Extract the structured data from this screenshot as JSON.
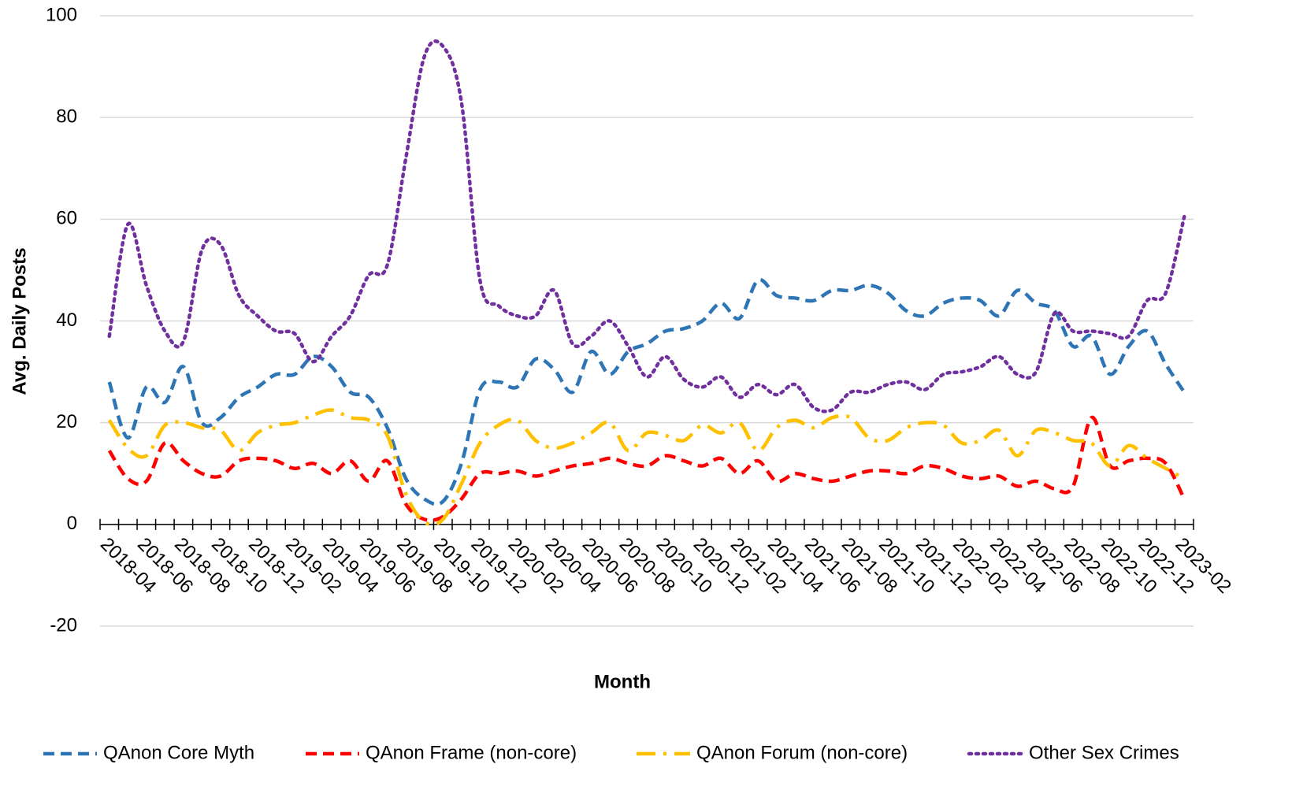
{
  "chart_data": {
    "type": "line",
    "x_label": "Month",
    "y_label": "Avg. Daily Posts",
    "categories": [
      "2018-04",
      null,
      "2018-06",
      null,
      "2018-08",
      null,
      "2018-10",
      null,
      "2018-12",
      null,
      "2019-02",
      null,
      "2019-04",
      null,
      "2019-06",
      null,
      "2019-08",
      null,
      "2019-10",
      null,
      "2019-12",
      null,
      "2020-02",
      null,
      "2020-04",
      null,
      "2020-06",
      null,
      "2020-08",
      null,
      "2020-10",
      null,
      "2020-12",
      null,
      "2021-02",
      null,
      "2021-04",
      null,
      "2021-06",
      null,
      "2021-08",
      null,
      "2021-10",
      null,
      "2021-12",
      null,
      "2022-02",
      null,
      "2022-04",
      null,
      "2022-06",
      null,
      "2022-08",
      null,
      "2022-10",
      null,
      "2022-12",
      null,
      "2023-02"
    ],
    "series": [
      {
        "name": "QAnon Core Myth",
        "color": "#2e75b6",
        "dash": "dashed",
        "values": [
          28,
          17,
          27,
          24,
          31,
          20,
          21,
          25,
          27,
          29.5,
          29.5,
          33,
          31,
          26,
          25,
          19,
          9,
          5,
          4.5,
          12,
          26.5,
          28,
          27,
          32.5,
          30.5,
          26,
          34,
          29.5,
          34,
          35.5,
          38,
          38.5,
          40,
          43.5,
          40.5,
          48,
          45,
          44.5,
          44,
          46,
          46,
          47,
          45.5,
          42,
          41,
          43.5,
          44.5,
          44,
          41,
          46,
          43.5,
          42,
          35,
          37,
          29.5,
          35,
          38,
          31.5,
          26
        ]
      },
      {
        "name": "QAnon Frame (non-core)",
        "color": "#ff0000",
        "dash": "dashed",
        "values": [
          14.5,
          9,
          8.5,
          16,
          12.5,
          10,
          9.5,
          12.5,
          13,
          12.5,
          11,
          12,
          10,
          12.5,
          8.5,
          12.5,
          4,
          1,
          1.5,
          5,
          10,
          10,
          10.5,
          9.5,
          10.5,
          11.5,
          12,
          13,
          12,
          11.5,
          13.5,
          12.5,
          11.5,
          13,
          10,
          12.5,
          8.5,
          10,
          9,
          8.5,
          9.5,
          10.5,
          10.5,
          10,
          11.5,
          11,
          9.5,
          9,
          9.5,
          7.5,
          8.5,
          7,
          7.5,
          21,
          11.5,
          12.5,
          13,
          12,
          5
        ]
      },
      {
        "name": "QAnon Forum (non-core)",
        "color": "#ffc000",
        "dash": "dash-dot",
        "values": [
          20.5,
          15,
          13.5,
          19.5,
          20,
          19,
          18.5,
          14.5,
          18,
          19.5,
          20,
          21.5,
          22.5,
          21,
          20.5,
          17.5,
          6,
          0.5,
          1,
          8,
          16,
          19.5,
          20.5,
          16.5,
          15,
          16,
          18,
          20,
          14.5,
          18,
          17.5,
          16.5,
          19.5,
          18,
          20,
          14.5,
          19,
          20.5,
          19,
          21,
          21,
          17,
          16.5,
          19,
          20,
          19.5,
          16,
          16.5,
          18.5,
          13.5,
          18.5,
          18,
          16.5,
          16,
          11.5,
          15.5,
          13,
          11,
          9
        ]
      },
      {
        "name": "Other Sex Crimes",
        "color": "#7030a0",
        "dash": "dotted",
        "values": [
          37,
          59,
          47,
          38,
          36,
          54,
          55,
          45,
          41,
          38,
          37.5,
          32,
          37,
          41,
          49,
          51,
          72,
          92,
          94,
          83,
          48,
          43,
          41,
          41,
          46,
          35.5,
          37,
          40,
          35,
          29,
          33,
          28.5,
          27,
          29,
          25,
          27.5,
          25.5,
          27.5,
          23,
          22.5,
          26,
          26,
          27.5,
          28,
          26.5,
          29.5,
          30,
          31,
          33,
          29.5,
          30,
          41.5,
          38,
          38,
          37.5,
          37,
          44,
          45.5,
          60.5
        ]
      }
    ],
    "ylim": [
      -20,
      100
    ],
    "yticks": [
      -20,
      0,
      20,
      40,
      60,
      80,
      100
    ],
    "grid": true,
    "legend": "bottom"
  }
}
